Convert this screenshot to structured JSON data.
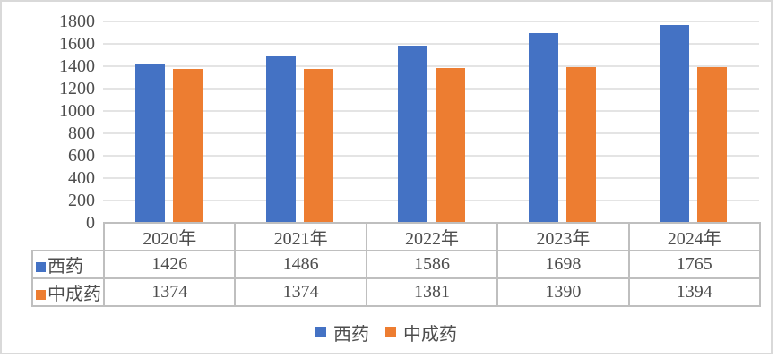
{
  "chart_data": {
    "type": "bar",
    "title": "",
    "categories": [
      "2020年",
      "2021年",
      "2022年",
      "2023年",
      "2024年"
    ],
    "series": [
      {
        "name": "西药",
        "color": "#4472C4",
        "values": [
          1426,
          1486,
          1586,
          1698,
          1765
        ]
      },
      {
        "name": "中成药",
        "color": "#ED7D31",
        "values": [
          1374,
          1374,
          1381,
          1390,
          1394
        ]
      }
    ],
    "xlabel": "",
    "ylabel": "",
    "ylim": [
      0,
      1800
    ],
    "yticks": [
      0,
      200,
      400,
      600,
      800,
      1000,
      1200,
      1400,
      1600,
      1800
    ],
    "grid": true,
    "legend_position": "bottom",
    "show_data_table": true
  },
  "colors": {
    "series_blue": "#4472C4",
    "series_orange": "#ED7D31",
    "gridline": "#E4E4E4",
    "table_border": "#BFBFBF",
    "text": "#4d4d4d",
    "frame_border": "#D9D9D9",
    "background": "#FFFFFF"
  }
}
